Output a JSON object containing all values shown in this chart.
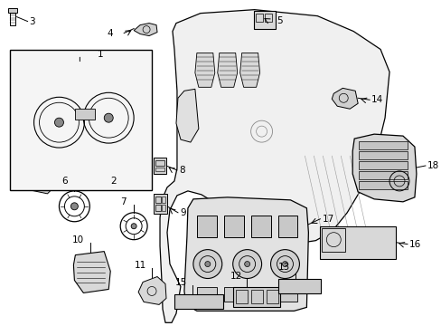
{
  "title": "",
  "background_color": "#ffffff",
  "line_color": "#000000",
  "label_color": "#000000",
  "figsize": [
    4.89,
    3.6
  ],
  "dpi": 100
}
